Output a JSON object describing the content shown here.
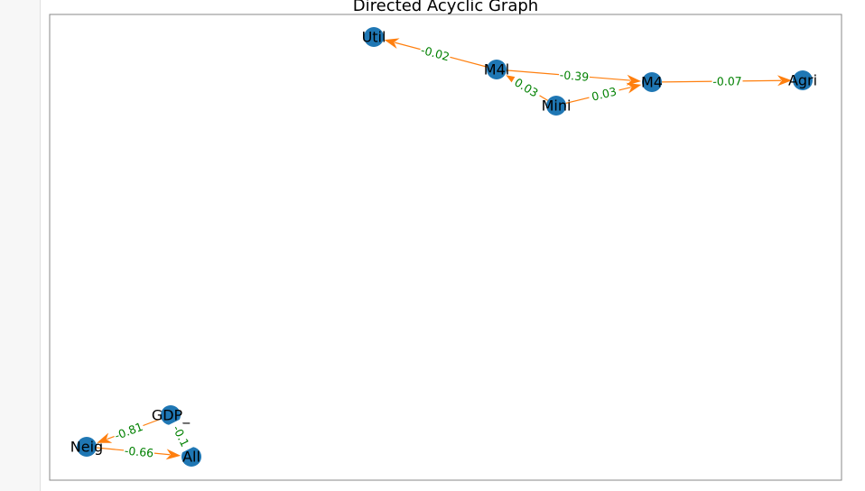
{
  "title": "Directed Acyclic Graph",
  "colors": {
    "node": "#1f77b4",
    "edge": "#ff7f0e",
    "edge_label": "#008000",
    "frame": "#888888"
  },
  "nodes": [
    {
      "id": "Util",
      "label": "Util"
    },
    {
      "id": "M4l",
      "label": "M4l"
    },
    {
      "id": "Mini",
      "label": "Mini"
    },
    {
      "id": "M4",
      "label": "M4"
    },
    {
      "id": "Agri",
      "label": "Agri"
    },
    {
      "id": "GDP_",
      "label": "GDP_"
    },
    {
      "id": "Neig",
      "label": "Neig"
    },
    {
      "id": "All",
      "label": "All"
    }
  ],
  "edges": [
    {
      "from": "M4l",
      "to": "Util",
      "label": "-0.02"
    },
    {
      "from": "M4l",
      "to": "M4",
      "label": "-0.39"
    },
    {
      "from": "Mini",
      "to": "M4l",
      "label": "0.03"
    },
    {
      "from": "Mini",
      "to": "M4",
      "label": "0.03"
    },
    {
      "from": "M4",
      "to": "Agri",
      "label": "-0.07"
    },
    {
      "from": "GDP_",
      "to": "Neig",
      "label": "-0.81"
    },
    {
      "from": "GDP_",
      "to": "All",
      "label": "-0.1"
    },
    {
      "from": "Neig",
      "to": "All",
      "label": "-0.66"
    }
  ]
}
